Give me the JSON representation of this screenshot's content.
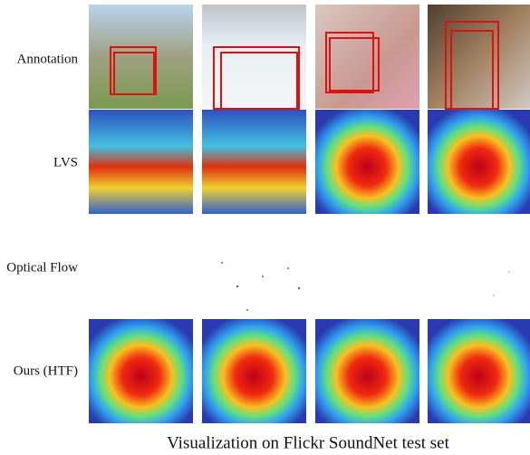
{
  "rows": [
    {
      "label": "Annotation"
    },
    {
      "label": "LVS"
    },
    {
      "label": "Optical Flow"
    },
    {
      "label": "Ours (HTF)"
    }
  ],
  "caption": "Visualization on Flickr SoundNet test set"
}
